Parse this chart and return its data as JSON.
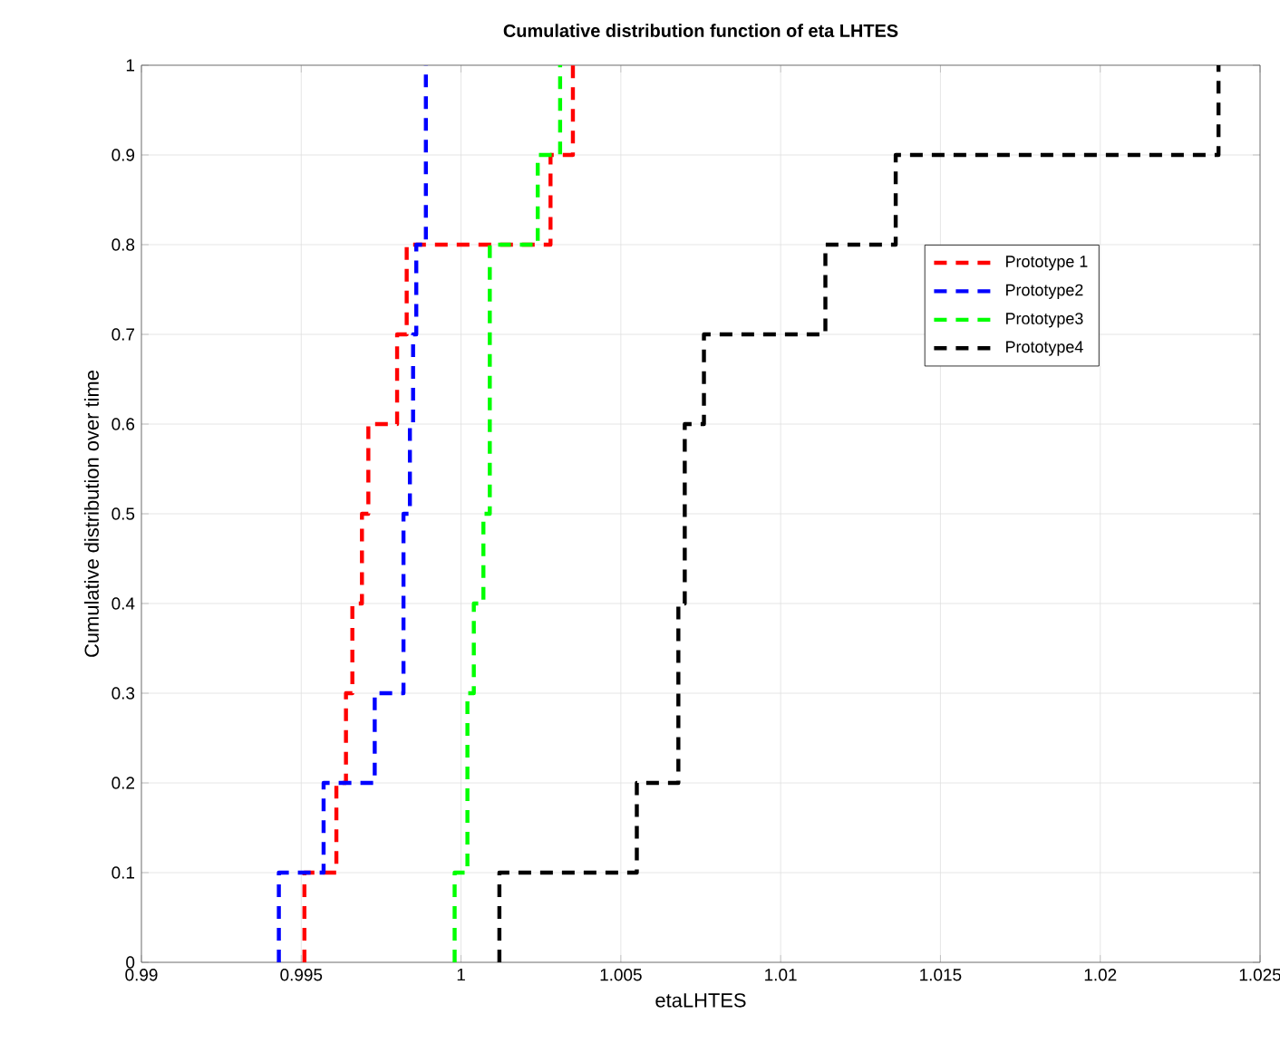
{
  "chart_data": {
    "type": "step",
    "title": "Cumulative distribution function of eta LHTES",
    "xlabel": "etaLHTES",
    "ylabel": "Cumulative distribution over time",
    "xlim": [
      0.99,
      1.025
    ],
    "ylim": [
      0,
      1
    ],
    "xticks": [
      0.99,
      0.995,
      1,
      1.005,
      1.01,
      1.015,
      1.02,
      1.025
    ],
    "yticks": [
      0,
      0.1,
      0.2,
      0.3,
      0.4,
      0.5,
      0.6,
      0.7,
      0.8,
      0.9,
      1
    ],
    "grid": true,
    "legend": "right",
    "line_style": "dashed",
    "marker": "none",
    "series": [
      {
        "name": "Prototype 1",
        "color": "#ff0000",
        "x": [
          0.9951,
          0.9951,
          0.9961,
          0.9964,
          0.9966,
          0.9969,
          0.9971,
          0.998,
          0.9983,
          1.0028,
          1.0035
        ],
        "values": [
          0,
          0.1,
          0.2,
          0.3,
          0.4,
          0.5,
          0.6,
          0.7,
          0.8,
          0.9,
          1
        ]
      },
      {
        "name": "Prototype2",
        "color": "#0000ff",
        "x": [
          0.9943,
          0.9943,
          0.9957,
          0.9973,
          0.9982,
          0.9982,
          0.9984,
          0.9985,
          0.9986,
          0.9989,
          0.9989
        ],
        "values": [
          0,
          0.1,
          0.2,
          0.3,
          0.4,
          0.5,
          0.6,
          0.7,
          0.8,
          0.9,
          1
        ]
      },
      {
        "name": "Prototype3",
        "color": "#00ff00",
        "x": [
          0.9998,
          0.9998,
          1.0002,
          1.0002,
          1.0004,
          1.0007,
          1.0009,
          1.0009,
          1.0009,
          1.0024,
          1.0031
        ],
        "values": [
          0,
          0.1,
          0.2,
          0.3,
          0.4,
          0.5,
          0.6,
          0.7,
          0.8,
          0.9,
          1
        ]
      },
      {
        "name": "Prototype4",
        "color": "#000000",
        "x": [
          1.0012,
          1.0012,
          1.0055,
          1.0068,
          1.0068,
          1.007,
          1.007,
          1.0076,
          1.0114,
          1.0136,
          1.0237
        ],
        "values": [
          0,
          0.1,
          0.2,
          0.3,
          0.4,
          0.5,
          0.6,
          0.7,
          0.8,
          0.9,
          1
        ]
      }
    ]
  }
}
